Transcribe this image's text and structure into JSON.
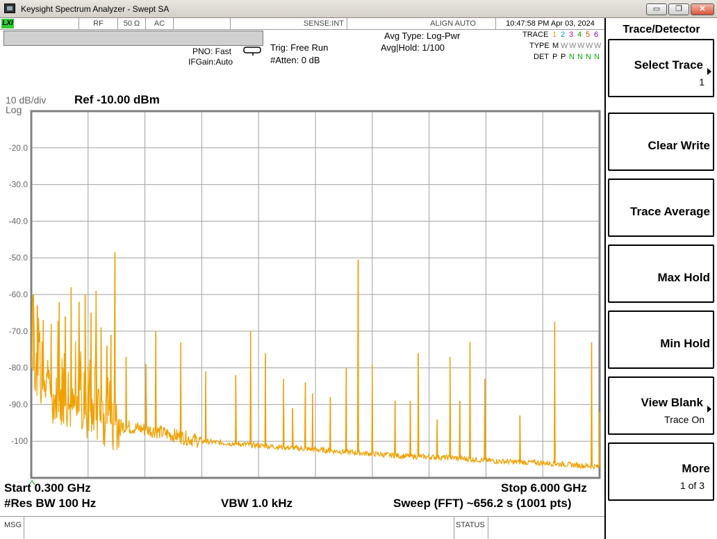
{
  "window": {
    "title": "Keysight Spectrum Analyzer - Swept SA"
  },
  "status_row": {
    "lxi": "LXI",
    "rf": "RF",
    "impedance": "50 Ω",
    "coupling": "AC",
    "sense": "SENSE:INT",
    "align": "ALIGN AUTO",
    "datetime": "10:47:58 PM Apr 03, 2024"
  },
  "header": {
    "pno": "PNO: Fast",
    "ifgain": "IFGain:Auto",
    "trig": "Trig: Free Run",
    "atten": "#Atten: 0 dB",
    "avg_type": "Avg Type: Log-Pwr",
    "avg_hold": "Avg|Hold: 1/100"
  },
  "trace_table": {
    "trace_label": "TRACE",
    "type_label": "TYPE",
    "det_label": "DET",
    "traces": [
      "1",
      "2",
      "3",
      "4",
      "5",
      "6"
    ],
    "trace_colors": [
      "#e8a000",
      "#00a0d0",
      "#c000c0",
      "#00a000",
      "#c05000",
      "#8000c0"
    ],
    "types": [
      "M",
      "W",
      "W",
      "W",
      "W",
      "W"
    ],
    "dets": [
      "P",
      "P",
      "N",
      "N",
      "N",
      "N"
    ]
  },
  "scale": {
    "per_div": "10 dB/div",
    "scale_type": "Log",
    "ref": "Ref -10.00 dBm",
    "y_labels": [
      "-20.0",
      "-30.0",
      "-40.0",
      "-50.0",
      "-60.0",
      "-70.0",
      "-80.0",
      "-90.0",
      "-100"
    ]
  },
  "footer": {
    "start": "Start 0.300 GHz",
    "stop": "Stop 6.000 GHz",
    "res_bw": "#Res BW 100 Hz",
    "vbw": "VBW 1.0 kHz",
    "sweep": "Sweep (FFT)  ~656.2 s (1001 pts)"
  },
  "msg_bar": {
    "msg": "MSG",
    "status": "STATUS"
  },
  "panel": {
    "title": "Trace/Detector",
    "keys": [
      {
        "main": "Select Trace",
        "sub": "1",
        "arrow": true
      },
      {
        "main": "Clear Write",
        "sub": "",
        "arrow": false
      },
      {
        "main": "Trace Average",
        "sub": "",
        "arrow": false
      },
      {
        "main": "Max Hold",
        "sub": "",
        "arrow": false
      },
      {
        "main": "Min Hold",
        "sub": "",
        "arrow": false
      },
      {
        "main": "View Blank",
        "sub": "Trace On",
        "arrow": true
      },
      {
        "main": "More",
        "sub": "1 of 3",
        "arrow": false
      }
    ]
  },
  "colors": {
    "trace": "#f0a000",
    "grid": "#a0a0a0",
    "frame": "#808080"
  },
  "chart_data": {
    "type": "line",
    "xlim": [
      0.3,
      6.0
    ],
    "ylim": [
      -110,
      -10
    ],
    "x_unit": "GHz",
    "y_unit": "dBm",
    "grid": true,
    "noise_floor": [
      [
        0.3,
        -80
      ],
      [
        0.5,
        -88
      ],
      [
        1.0,
        -95
      ],
      [
        1.5,
        -97
      ],
      [
        2.0,
        -100
      ],
      [
        2.5,
        -101
      ],
      [
        3.0,
        -102
      ],
      [
        3.5,
        -103
      ],
      [
        4.0,
        -104
      ],
      [
        4.5,
        -104.5
      ],
      [
        5.0,
        -105.5
      ],
      [
        5.5,
        -106
      ],
      [
        6.0,
        -107
      ]
    ],
    "spurs": [
      [
        0.32,
        -60
      ],
      [
        0.36,
        -63
      ],
      [
        0.42,
        -67
      ],
      [
        0.5,
        -68
      ],
      [
        0.58,
        -62
      ],
      [
        0.64,
        -66
      ],
      [
        0.7,
        -58
      ],
      [
        0.78,
        -62
      ],
      [
        0.84,
        -60
      ],
      [
        0.9,
        -65
      ],
      [
        0.95,
        -59
      ],
      [
        1.0,
        -69
      ],
      [
        1.06,
        -74
      ],
      [
        1.1,
        -71
      ],
      [
        1.14,
        -48.5
      ],
      [
        1.25,
        -77
      ],
      [
        1.45,
        -79
      ],
      [
        1.55,
        -70
      ],
      [
        1.8,
        -73
      ],
      [
        2.05,
        -81
      ],
      [
        2.35,
        -82
      ],
      [
        2.5,
        -70
      ],
      [
        2.65,
        -76
      ],
      [
        2.83,
        -83
      ],
      [
        2.92,
        -91
      ],
      [
        3.05,
        -84
      ],
      [
        3.12,
        -87
      ],
      [
        3.3,
        -88
      ],
      [
        3.46,
        -80
      ],
      [
        3.58,
        -50.5
      ],
      [
        3.72,
        -79
      ],
      [
        3.95,
        -89
      ],
      [
        4.1,
        -89
      ],
      [
        4.18,
        -76
      ],
      [
        4.37,
        -94
      ],
      [
        4.5,
        -77
      ],
      [
        4.6,
        -89
      ],
      [
        4.7,
        -73
      ],
      [
        4.85,
        -83
      ],
      [
        5.2,
        -93
      ],
      [
        5.55,
        -67.5
      ],
      [
        5.92,
        -73
      ],
      [
        6.0,
        -92
      ]
    ]
  }
}
